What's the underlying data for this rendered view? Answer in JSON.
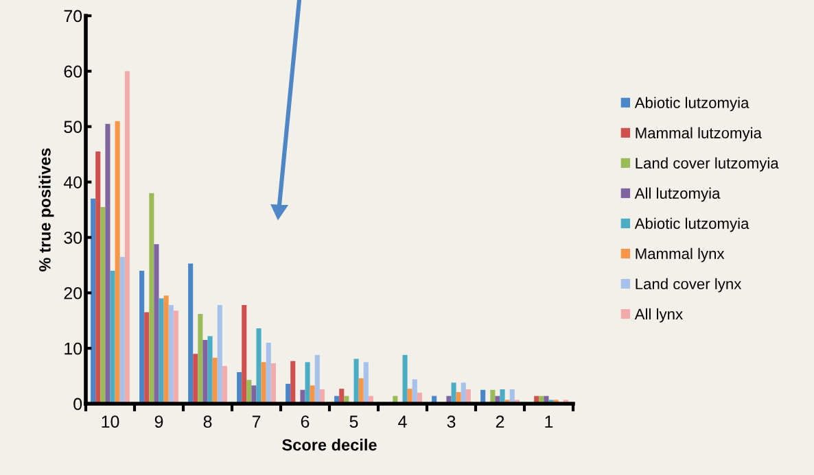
{
  "chart_data": {
    "type": "bar",
    "xlabel": "Score decile",
    "ylabel": "% true positives",
    "categories": [
      "10",
      "9",
      "8",
      "7",
      "6",
      "5",
      "4",
      "3",
      "2",
      "1"
    ],
    "ylim": [
      0,
      70
    ],
    "yticks": [
      0,
      10,
      20,
      30,
      40,
      50,
      60,
      70
    ],
    "grid": false,
    "legend": "right",
    "series": [
      {
        "name": "Abiotic lutzomyia",
        "color": "#4a86c8",
        "values": [
          37,
          24,
          25.3,
          5.7,
          3.6,
          1.4,
          0,
          1.4,
          2.5,
          0
        ]
      },
      {
        "name": "Mammal lutzomyia",
        "color": "#d0504d",
        "values": [
          45.5,
          16.5,
          9,
          17.8,
          7.7,
          2.7,
          0,
          0,
          0,
          1.4
        ]
      },
      {
        "name": "Land cover lutzomyia",
        "color": "#9bbb59",
        "values": [
          35.5,
          38,
          16.2,
          4.3,
          0,
          1.4,
          1.4,
          0,
          2.5,
          1.4
        ]
      },
      {
        "name": "All lutzomyia",
        "color": "#8064a2",
        "values": [
          50.5,
          28.8,
          11.5,
          3.3,
          2.5,
          0,
          0,
          1.4,
          1.4,
          1.4
        ]
      },
      {
        "name": "Abiotic lutzomyia",
        "color": "#4bacc6",
        "values": [
          24,
          19,
          12.2,
          13.6,
          7.5,
          8.1,
          8.8,
          3.8,
          2.6,
          0.7
        ]
      },
      {
        "name": "Mammal lynx",
        "color": "#f79646",
        "values": [
          51,
          19.5,
          8.3,
          7.5,
          3.3,
          4.6,
          2.7,
          2.1,
          0.7,
          0.7
        ]
      },
      {
        "name": "Land cover lynx",
        "color": "#a6c2ec",
        "values": [
          26.5,
          17.8,
          17.8,
          11,
          8.8,
          7.5,
          4.4,
          3.8,
          2.6,
          0
        ]
      },
      {
        "name": "All lynx",
        "color": "#f2aaaa",
        "values": [
          60,
          16.8,
          6.8,
          7.3,
          2.6,
          1.4,
          2.0,
          2.6,
          0.7,
          0.7
        ]
      }
    ]
  }
}
